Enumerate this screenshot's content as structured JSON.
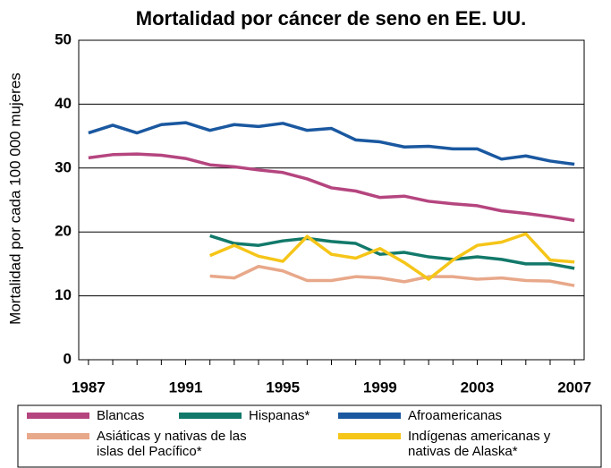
{
  "chart_data": {
    "type": "line",
    "title": "Mortalidad por cáncer de seno en EE. UU.",
    "y_label": "Mortalidad por cada 100 000 mujeres",
    "x": [
      1987,
      1988,
      1989,
      1990,
      1991,
      1992,
      1993,
      1994,
      1995,
      1996,
      1997,
      1998,
      1999,
      2000,
      2001,
      2002,
      2003,
      2004,
      2005,
      2006,
      2007
    ],
    "series": [
      {
        "name": "Blancas",
        "color": "#b5457f",
        "values": [
          31.6,
          32.1,
          32.2,
          32.0,
          31.5,
          30.5,
          30.2,
          29.7,
          29.3,
          28.3,
          26.9,
          26.4,
          25.4,
          25.6,
          24.8,
          24.4,
          24.1,
          23.3,
          22.9,
          22.4,
          21.8
        ]
      },
      {
        "name": "Hispanas*",
        "color": "#12796a",
        "values": [
          null,
          null,
          null,
          null,
          null,
          19.4,
          18.2,
          17.9,
          18.6,
          19.0,
          18.5,
          18.2,
          16.5,
          16.8,
          16.1,
          15.7,
          16.1,
          15.7,
          15.0,
          15.0,
          14.3
        ]
      },
      {
        "name": "Afroamericanas",
        "color": "#1a58a0",
        "values": [
          35.5,
          36.7,
          35.5,
          36.8,
          37.1,
          35.9,
          36.8,
          36.5,
          37.0,
          35.9,
          36.2,
          34.4,
          34.1,
          33.3,
          33.4,
          33.0,
          33.0,
          31.4,
          31.9,
          31.1,
          30.6
        ]
      },
      {
        "name": "Asiáticas y nativas de las islas del Pacífico*",
        "color": "#e8a88a",
        "values": [
          null,
          null,
          null,
          null,
          null,
          13.1,
          12.8,
          14.6,
          13.9,
          12.4,
          12.4,
          13.0,
          12.8,
          12.2,
          13.0,
          13.0,
          12.6,
          12.8,
          12.4,
          12.3,
          11.6
        ]
      },
      {
        "name": "Indígenas americanas y nativas de Alaska*",
        "color": "#f5c518",
        "values": [
          null,
          null,
          null,
          null,
          null,
          16.3,
          17.9,
          16.2,
          15.4,
          19.3,
          16.5,
          15.9,
          17.4,
          15.2,
          12.6,
          15.6,
          17.9,
          18.4,
          19.7,
          15.6,
          15.3
        ]
      }
    ],
    "xlim": [
      1986.6,
      2007.4
    ],
    "xticks": [
      1987,
      1991,
      1995,
      1999,
      2003,
      2007
    ],
    "ylim": [
      0,
      50
    ],
    "yticks": [
      0,
      10,
      20,
      30,
      40,
      50
    ],
    "grid": true
  }
}
